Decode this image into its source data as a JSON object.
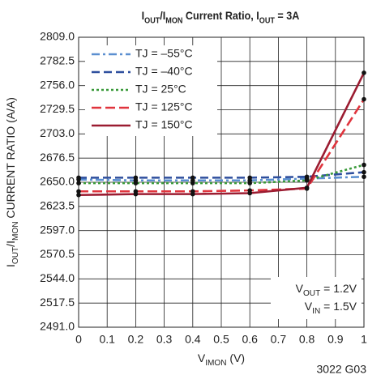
{
  "chart_data": {
    "type": "line",
    "title": [
      {
        "text": "I"
      },
      {
        "text": "OUT",
        "sub": true
      },
      {
        "text": "/I"
      },
      {
        "text": "MON",
        "sub": true
      },
      {
        "text": " Current Ratio, I"
      },
      {
        "text": "OUT",
        "sub": true
      },
      {
        "text": " = 3A"
      }
    ],
    "xlabel": [
      {
        "text": "V"
      },
      {
        "text": "IMON",
        "sub": true
      },
      {
        "text": " (V)"
      }
    ],
    "ylabel": [
      {
        "text": "I"
      },
      {
        "text": "OUT",
        "sub": true
      },
      {
        "text": "/I"
      },
      {
        "text": "MON",
        "sub": true
      },
      {
        "text": " CURRENT RATIO (A/A)"
      }
    ],
    "annotation": [
      [
        {
          "text": "V"
        },
        {
          "text": "OUT",
          "sub": true
        },
        {
          "text": " = 1.2V"
        }
      ],
      [
        {
          "text": "V"
        },
        {
          "text": "IN",
          "sub": true
        },
        {
          "text": " = 1.5V"
        }
      ]
    ],
    "footnote": "3022 G03",
    "x": [
      0,
      0.2,
      0.4,
      0.6,
      0.8,
      1
    ],
    "series": [
      {
        "name": "TJ = –55°C",
        "color": "#5b8fd0",
        "dash": "10 4 3 4",
        "values": [
          2653,
          2652,
          2652,
          2652,
          2654,
          2656
        ]
      },
      {
        "name": "TJ = –40°C",
        "color": "#2e4f9e",
        "dash": "10 5",
        "values": [
          2655,
          2655,
          2655,
          2655,
          2656,
          2661
        ]
      },
      {
        "name": "TJ = 25°C",
        "color": "#3a9a3a",
        "dash": "3 3",
        "values": [
          2649,
          2649,
          2649,
          2649,
          2652,
          2669
        ]
      },
      {
        "name": "TJ = 125°C",
        "color": "#e0343d",
        "dash": "12 5",
        "values": [
          2640,
          2640,
          2640,
          2641,
          2643,
          2741
        ]
      },
      {
        "name": "TJ = 150°C",
        "color": "#9b1c31",
        "dash": "",
        "values": [
          2636,
          2637,
          2637,
          2638,
          2644,
          2770
        ]
      }
    ],
    "xlim": [
      0,
      1
    ],
    "xticks": [
      0,
      0.1,
      0.2,
      0.3,
      0.4,
      0.5,
      0.6,
      0.7,
      0.8,
      0.9,
      1
    ],
    "ylim": [
      2491,
      2809
    ],
    "yticks": [
      {
        "value": 2491,
        "label": "2491.0"
      },
      {
        "value": 2517.5,
        "label": "2517.5"
      },
      {
        "value": 2544,
        "label": "2544.0"
      },
      {
        "value": 2570.5,
        "label": "2570.5"
      },
      {
        "value": 2597,
        "label": "2597.0"
      },
      {
        "value": 2623.5,
        "label": "2623.5"
      },
      {
        "value": 2650,
        "label": "2650.0"
      },
      {
        "value": 2676.5,
        "label": "2676.5"
      },
      {
        "value": 2703,
        "label": "2703.0"
      },
      {
        "value": 2729.5,
        "label": "2729.5"
      },
      {
        "value": 2756,
        "label": "2756.0"
      },
      {
        "value": 2782.5,
        "label": "2782.5"
      },
      {
        "value": 2809,
        "label": "2809.0"
      }
    ],
    "grid": true,
    "legend": "upper left",
    "marker_color": "#111111"
  }
}
